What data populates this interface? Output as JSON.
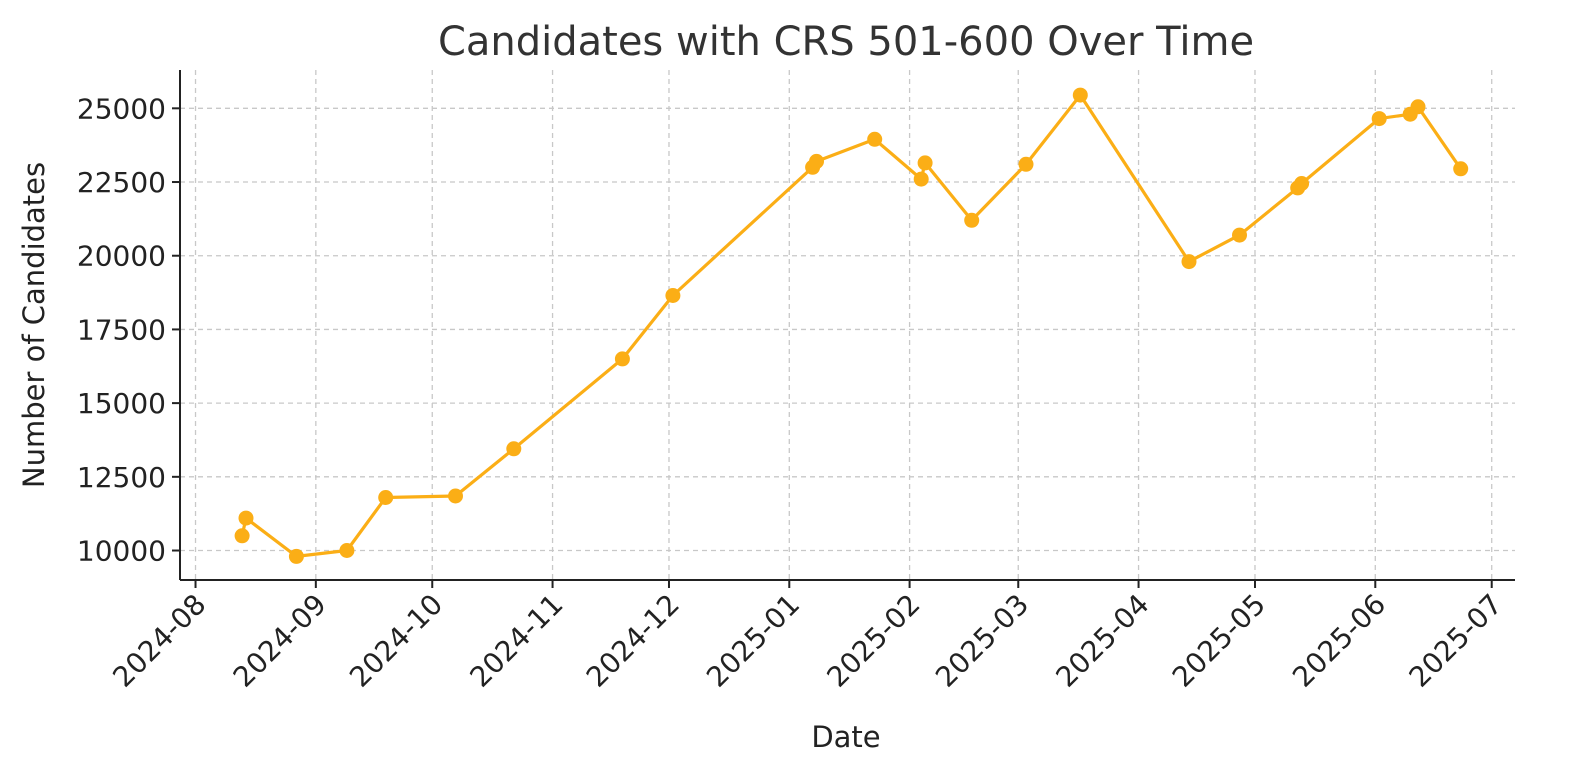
{
  "chart_data": {
    "type": "line",
    "title": "Candidates with CRS 501-600 Over Time",
    "xlabel": "Date",
    "ylabel": "Number of Candidates",
    "x_ticks": [
      "2024-08-01",
      "2024-09-01",
      "2024-10-01",
      "2024-11-01",
      "2024-12-01",
      "2025-01-01",
      "2025-02-01",
      "2025-03-01",
      "2025-04-01",
      "2025-05-01",
      "2025-06-01",
      "2025-07-01"
    ],
    "x_tick_labels": [
      "2024-08",
      "2024-09",
      "2024-10",
      "2024-11",
      "2024-12",
      "2025-01",
      "2025-02",
      "2025-03",
      "2025-04",
      "2025-05",
      "2025-06",
      "2025-07"
    ],
    "y_ticks": [
      10000,
      12500,
      15000,
      17500,
      20000,
      22500,
      25000
    ],
    "y_tick_labels": [
      "10000",
      "12500",
      "15000",
      "17500",
      "20000",
      "22500",
      "25000"
    ],
    "xlim": [
      "2024-07-28",
      "2025-07-07"
    ],
    "ylim": [
      9000,
      26300
    ],
    "grid": true,
    "color": "#FBAE16",
    "series": [
      {
        "points": [
          [
            "2024-08-13",
            10500
          ],
          [
            "2024-08-14",
            11100
          ],
          [
            "2024-08-27",
            9800
          ],
          [
            "2024-09-09",
            10000
          ],
          [
            "2024-09-19",
            11800
          ],
          [
            "2024-10-07",
            11850
          ],
          [
            "2024-10-22",
            13450
          ],
          [
            "2024-11-19",
            16500
          ],
          [
            "2024-12-02",
            18650
          ],
          [
            "2025-01-07",
            23000
          ],
          [
            "2025-01-08",
            23200
          ],
          [
            "2025-01-23",
            23950
          ],
          [
            "2025-02-04",
            22600
          ],
          [
            "2025-02-05",
            23150
          ],
          [
            "2025-02-17",
            21200
          ],
          [
            "2025-03-03",
            23100
          ],
          [
            "2025-03-17",
            25450
          ],
          [
            "2025-04-14",
            19800
          ],
          [
            "2025-04-27",
            20700
          ],
          [
            "2025-05-12",
            22300
          ],
          [
            "2025-05-13",
            22450
          ],
          [
            "2025-06-02",
            24650
          ],
          [
            "2025-06-10",
            24800
          ],
          [
            "2025-06-12",
            25050
          ],
          [
            "2025-06-23",
            22950
          ]
        ]
      }
    ]
  }
}
